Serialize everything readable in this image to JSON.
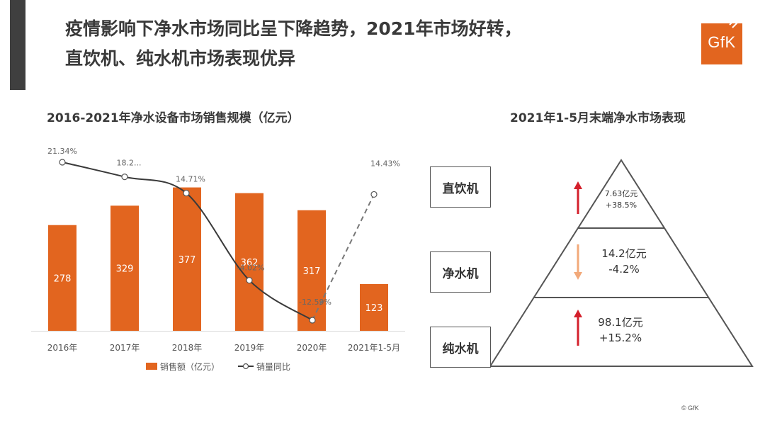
{
  "header": {
    "title_line1": "疫情影响下净水市场同比呈下降趋势，2021年市场好转，",
    "title_line2": "直饮机、纯水机市场表现优异",
    "logo_text": "GfK",
    "accent_color": "#e2651f"
  },
  "chart_data": [
    {
      "type": "bar",
      "title": "2016-2021年净水设备市场销售规模（亿元）",
      "categories": [
        "2016年",
        "2017年",
        "2018年",
        "2019年",
        "2020年",
        "2021年1-5月"
      ],
      "series": [
        {
          "name": "销售额（亿元）",
          "type": "bar",
          "color": "#e2651f",
          "values": [
            278,
            329,
            377,
            362,
            317,
            123
          ]
        },
        {
          "name": "销量同比",
          "type": "line",
          "color": "#3a3a3a",
          "values": [
            21.34,
            18.2,
            14.71,
            -4.02,
            -12.59,
            14.43
          ],
          "labels": [
            "21.34%",
            "18.2...",
            "14.71%",
            "-4.02%",
            "-12.59%",
            "14.43%"
          ],
          "dashed_last_segment": true
        }
      ],
      "ylim_bar": [
        0,
        460
      ],
      "legend_position": "bottom",
      "grid": false
    },
    {
      "type": "pyramid",
      "title": "2021年1-5月末端净水市场表现",
      "levels": [
        {
          "name": "直饮机",
          "value": "7.63亿元",
          "change": "+38.5%",
          "trend": "up",
          "arrow_color": "#d4202c"
        },
        {
          "name": "净水机",
          "value": "14.2亿元",
          "change": "-4.2%",
          "trend": "down",
          "arrow_color": "#f2a97a"
        },
        {
          "name": "纯水机",
          "value": "98.1亿元",
          "change": "+15.2%",
          "trend": "up",
          "arrow_color": "#d4202c"
        }
      ]
    }
  ],
  "footer": {
    "copyright": "© GfK"
  }
}
